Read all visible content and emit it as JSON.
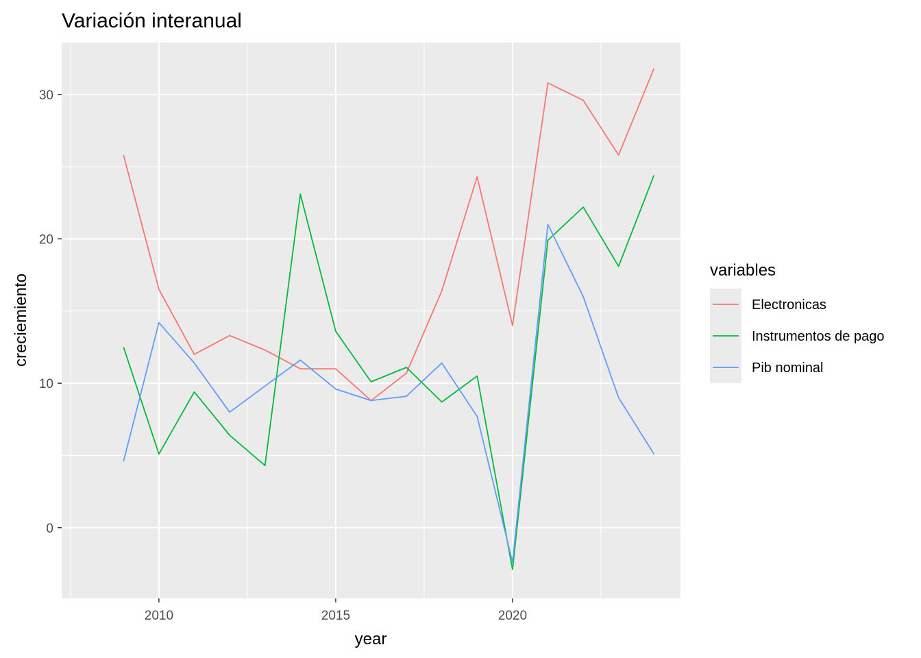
{
  "chart_data": {
    "type": "line",
    "title": "Variación interanual",
    "xlabel": "year",
    "ylabel": "creciemiento",
    "xlim": [
      2007.25,
      2024.75
    ],
    "ylim": [
      -4.9,
      33.6
    ],
    "x_ticks": [
      2010,
      2015,
      2020
    ],
    "x_minor_ticks": [
      2007.5,
      2012.5,
      2017.5,
      2022.5
    ],
    "y_ticks": [
      0,
      10,
      20,
      30
    ],
    "y_minor_ticks": [
      5,
      15,
      25
    ],
    "grid": true,
    "legend": {
      "title": "variables",
      "position": "right"
    },
    "x": [
      2009,
      2010,
      2011,
      2012,
      2013,
      2014,
      2015,
      2016,
      2017,
      2018,
      2019,
      2020,
      2021,
      2022,
      2023,
      2024
    ],
    "series": [
      {
        "name": "Electronicas",
        "color": "#F8766D",
        "values": [
          25.8,
          16.5,
          12.0,
          13.3,
          12.3,
          11.0,
          11.0,
          8.8,
          10.7,
          16.4,
          24.3,
          14.0,
          30.8,
          29.6,
          25.8,
          31.8
        ]
      },
      {
        "name": "Instrumentos de pago",
        "color": "#00BA38",
        "values": [
          12.5,
          5.1,
          9.4,
          6.4,
          4.3,
          23.1,
          13.6,
          10.1,
          11.1,
          8.7,
          10.5,
          -2.9,
          19.9,
          22.2,
          18.1,
          24.4
        ]
      },
      {
        "name": "Pib nominal",
        "color": "#619CFF",
        "values": [
          4.6,
          14.2,
          11.4,
          8.0,
          9.8,
          11.6,
          9.6,
          8.8,
          9.1,
          11.4,
          7.7,
          -2.4,
          21.0,
          16.0,
          9.0,
          5.1
        ]
      }
    ]
  }
}
